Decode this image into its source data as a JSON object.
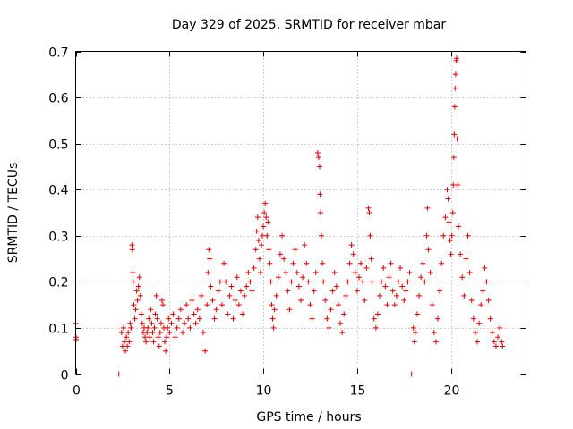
{
  "chart_data": {
    "type": "scatter",
    "title": "Day 329 of 2025, SRMTID for receiver mbar",
    "xlabel": "GPS time / hours",
    "ylabel": "SRMTID / TECUs",
    "xlim": [
      0,
      24
    ],
    "ylim": [
      0,
      0.7
    ],
    "xticks": [
      0,
      5,
      10,
      15,
      20
    ],
    "yticks": [
      0,
      0.1,
      0.2,
      0.3,
      0.4,
      0.5,
      0.6,
      0.7
    ],
    "xtick_labels": [
      "0",
      "5",
      "10",
      "15",
      "20"
    ],
    "ytick_labels": [
      "0",
      "0.1",
      "0.2",
      "0.3",
      "0.4",
      "0.5",
      "0.6",
      "0.7"
    ],
    "grid": true,
    "marker": "+",
    "color": "#e00000",
    "series": [
      {
        "name": "SRMTID",
        "points": [
          [
            0.0,
            0.11
          ],
          [
            0.02,
            0.08
          ],
          [
            0.03,
            0.075
          ],
          [
            2.3,
            0.0
          ],
          [
            17.9,
            0.0
          ],
          [
            2.45,
            0.09
          ],
          [
            2.5,
            0.06
          ],
          [
            2.55,
            0.1
          ],
          [
            2.6,
            0.07
          ],
          [
            2.65,
            0.05
          ],
          [
            2.7,
            0.08
          ],
          [
            2.75,
            0.06
          ],
          [
            2.8,
            0.09
          ],
          [
            2.85,
            0.07
          ],
          [
            2.9,
            0.11
          ],
          [
            2.95,
            0.1
          ],
          [
            3.0,
            0.28
          ],
          [
            3.02,
            0.27
          ],
          [
            3.05,
            0.22
          ],
          [
            3.07,
            0.2
          ],
          [
            3.1,
            0.15
          ],
          [
            3.15,
            0.12
          ],
          [
            3.2,
            0.14
          ],
          [
            3.25,
            0.18
          ],
          [
            3.3,
            0.16
          ],
          [
            3.35,
            0.19
          ],
          [
            3.4,
            0.21
          ],
          [
            3.45,
            0.17
          ],
          [
            3.5,
            0.13
          ],
          [
            3.55,
            0.11
          ],
          [
            3.6,
            0.09
          ],
          [
            3.65,
            0.1
          ],
          [
            3.7,
            0.08
          ],
          [
            3.75,
            0.07
          ],
          [
            3.8,
            0.09
          ],
          [
            3.85,
            0.1
          ],
          [
            3.9,
            0.12
          ],
          [
            3.95,
            0.08
          ],
          [
            4.0,
            0.14
          ],
          [
            4.05,
            0.11
          ],
          [
            4.1,
            0.09
          ],
          [
            4.15,
            0.07
          ],
          [
            4.2,
            0.1
          ],
          [
            4.25,
            0.13
          ],
          [
            4.3,
            0.17
          ],
          [
            4.35,
            0.12
          ],
          [
            4.4,
            0.08
          ],
          [
            4.45,
            0.06
          ],
          [
            4.5,
            0.09
          ],
          [
            4.55,
            0.11
          ],
          [
            4.6,
            0.16
          ],
          [
            4.65,
            0.15
          ],
          [
            4.7,
            0.1
          ],
          [
            4.75,
            0.07
          ],
          [
            4.8,
            0.05
          ],
          [
            4.85,
            0.08
          ],
          [
            4.9,
            0.1
          ],
          [
            4.95,
            0.12
          ],
          [
            5.0,
            0.09
          ],
          [
            5.1,
            0.11
          ],
          [
            5.2,
            0.13
          ],
          [
            5.3,
            0.08
          ],
          [
            5.4,
            0.1
          ],
          [
            5.5,
            0.12
          ],
          [
            5.6,
            0.14
          ],
          [
            5.7,
            0.09
          ],
          [
            5.8,
            0.11
          ],
          [
            5.9,
            0.15
          ],
          [
            6.0,
            0.12
          ],
          [
            6.1,
            0.1
          ],
          [
            6.2,
            0.16
          ],
          [
            6.3,
            0.13
          ],
          [
            6.4,
            0.11
          ],
          [
            6.5,
            0.14
          ],
          [
            6.6,
            0.12
          ],
          [
            6.7,
            0.17
          ],
          [
            6.8,
            0.09
          ],
          [
            6.9,
            0.05
          ],
          [
            7.0,
            0.15
          ],
          [
            7.05,
            0.22
          ],
          [
            7.1,
            0.27
          ],
          [
            7.15,
            0.25
          ],
          [
            7.2,
            0.19
          ],
          [
            7.3,
            0.16
          ],
          [
            7.4,
            0.12
          ],
          [
            7.5,
            0.14
          ],
          [
            7.6,
            0.18
          ],
          [
            7.7,
            0.2
          ],
          [
            7.8,
            0.15
          ],
          [
            7.9,
            0.24
          ],
          [
            8.0,
            0.2
          ],
          [
            8.1,
            0.13
          ],
          [
            8.2,
            0.17
          ],
          [
            8.3,
            0.19
          ],
          [
            8.4,
            0.12
          ],
          [
            8.5,
            0.16
          ],
          [
            8.6,
            0.21
          ],
          [
            8.7,
            0.15
          ],
          [
            8.8,
            0.18
          ],
          [
            8.9,
            0.13
          ],
          [
            9.0,
            0.17
          ],
          [
            9.1,
            0.19
          ],
          [
            9.2,
            0.22
          ],
          [
            9.3,
            0.2
          ],
          [
            9.4,
            0.18
          ],
          [
            9.5,
            0.23
          ],
          [
            9.6,
            0.27
          ],
          [
            9.65,
            0.31
          ],
          [
            9.7,
            0.34
          ],
          [
            9.75,
            0.29
          ],
          [
            9.8,
            0.25
          ],
          [
            9.85,
            0.22
          ],
          [
            9.9,
            0.28
          ],
          [
            9.95,
            0.3
          ],
          [
            10.0,
            0.32
          ],
          [
            10.05,
            0.35
          ],
          [
            10.1,
            0.37
          ],
          [
            10.15,
            0.34
          ],
          [
            10.2,
            0.3
          ],
          [
            10.25,
            0.33
          ],
          [
            10.3,
            0.27
          ],
          [
            10.35,
            0.24
          ],
          [
            10.4,
            0.2
          ],
          [
            10.45,
            0.15
          ],
          [
            10.5,
            0.12
          ],
          [
            10.55,
            0.1
          ],
          [
            10.6,
            0.14
          ],
          [
            10.7,
            0.17
          ],
          [
            10.8,
            0.21
          ],
          [
            10.9,
            0.26
          ],
          [
            11.0,
            0.3
          ],
          [
            11.1,
            0.25
          ],
          [
            11.2,
            0.22
          ],
          [
            11.3,
            0.18
          ],
          [
            11.4,
            0.14
          ],
          [
            11.5,
            0.2
          ],
          [
            11.6,
            0.24
          ],
          [
            11.7,
            0.27
          ],
          [
            11.8,
            0.22
          ],
          [
            11.9,
            0.19
          ],
          [
            12.0,
            0.16
          ],
          [
            12.1,
            0.21
          ],
          [
            12.2,
            0.28
          ],
          [
            12.3,
            0.24
          ],
          [
            12.4,
            0.2
          ],
          [
            12.5,
            0.15
          ],
          [
            12.6,
            0.12
          ],
          [
            12.7,
            0.18
          ],
          [
            12.8,
            0.22
          ],
          [
            12.9,
            0.48
          ],
          [
            12.95,
            0.47
          ],
          [
            13.0,
            0.45
          ],
          [
            13.02,
            0.39
          ],
          [
            13.05,
            0.35
          ],
          [
            13.1,
            0.3
          ],
          [
            13.15,
            0.24
          ],
          [
            13.2,
            0.2
          ],
          [
            13.3,
            0.16
          ],
          [
            13.4,
            0.12
          ],
          [
            13.5,
            0.1
          ],
          [
            13.6,
            0.14
          ],
          [
            13.7,
            0.18
          ],
          [
            13.8,
            0.22
          ],
          [
            13.9,
            0.19
          ],
          [
            14.0,
            0.15
          ],
          [
            14.1,
            0.11
          ],
          [
            14.2,
            0.09
          ],
          [
            14.3,
            0.13
          ],
          [
            14.4,
            0.17
          ],
          [
            14.5,
            0.2
          ],
          [
            14.6,
            0.24
          ],
          [
            14.7,
            0.28
          ],
          [
            14.8,
            0.26
          ],
          [
            14.9,
            0.22
          ],
          [
            15.0,
            0.18
          ],
          [
            15.1,
            0.21
          ],
          [
            15.2,
            0.24
          ],
          [
            15.3,
            0.2
          ],
          [
            15.4,
            0.16
          ],
          [
            15.5,
            0.23
          ],
          [
            15.6,
            0.36
          ],
          [
            15.65,
            0.35
          ],
          [
            15.7,
            0.3
          ],
          [
            15.75,
            0.25
          ],
          [
            15.8,
            0.2
          ],
          [
            15.9,
            0.12
          ],
          [
            16.0,
            0.1
          ],
          [
            16.1,
            0.13
          ],
          [
            16.2,
            0.17
          ],
          [
            16.3,
            0.2
          ],
          [
            16.4,
            0.23
          ],
          [
            16.5,
            0.19
          ],
          [
            16.6,
            0.15
          ],
          [
            16.7,
            0.21
          ],
          [
            16.8,
            0.24
          ],
          [
            16.9,
            0.18
          ],
          [
            17.0,
            0.15
          ],
          [
            17.1,
            0.17
          ],
          [
            17.2,
            0.2
          ],
          [
            17.3,
            0.23
          ],
          [
            17.4,
            0.19
          ],
          [
            17.5,
            0.16
          ],
          [
            17.6,
            0.18
          ],
          [
            17.7,
            0.2
          ],
          [
            17.8,
            0.22
          ],
          [
            18.0,
            0.1
          ],
          [
            18.05,
            0.07
          ],
          [
            18.1,
            0.09
          ],
          [
            18.2,
            0.13
          ],
          [
            18.3,
            0.17
          ],
          [
            18.4,
            0.21
          ],
          [
            18.5,
            0.24
          ],
          [
            18.6,
            0.2
          ],
          [
            18.7,
            0.3
          ],
          [
            18.75,
            0.36
          ],
          [
            18.8,
            0.27
          ],
          [
            18.9,
            0.22
          ],
          [
            19.0,
            0.15
          ],
          [
            19.1,
            0.09
          ],
          [
            19.2,
            0.07
          ],
          [
            19.3,
            0.12
          ],
          [
            19.4,
            0.18
          ],
          [
            19.5,
            0.24
          ],
          [
            19.6,
            0.3
          ],
          [
            19.7,
            0.34
          ],
          [
            19.8,
            0.4
          ],
          [
            19.85,
            0.38
          ],
          [
            19.9,
            0.33
          ],
          [
            19.95,
            0.29
          ],
          [
            20.0,
            0.26
          ],
          [
            20.05,
            0.3
          ],
          [
            20.1,
            0.35
          ],
          [
            20.12,
            0.41
          ],
          [
            20.15,
            0.47
          ],
          [
            20.18,
            0.52
          ],
          [
            20.2,
            0.58
          ],
          [
            20.22,
            0.62
          ],
          [
            20.25,
            0.65
          ],
          [
            20.28,
            0.68
          ],
          [
            20.3,
            0.685
          ],
          [
            20.33,
            0.51
          ],
          [
            20.36,
            0.41
          ],
          [
            20.4,
            0.32
          ],
          [
            20.5,
            0.26
          ],
          [
            20.6,
            0.21
          ],
          [
            20.7,
            0.17
          ],
          [
            20.8,
            0.25
          ],
          [
            20.9,
            0.3
          ],
          [
            21.0,
            0.22
          ],
          [
            21.1,
            0.16
          ],
          [
            21.2,
            0.12
          ],
          [
            21.3,
            0.09
          ],
          [
            21.4,
            0.07
          ],
          [
            21.5,
            0.11
          ],
          [
            21.6,
            0.15
          ],
          [
            21.7,
            0.18
          ],
          [
            21.8,
            0.23
          ],
          [
            21.9,
            0.2
          ],
          [
            22.0,
            0.16
          ],
          [
            22.1,
            0.12
          ],
          [
            22.2,
            0.09
          ],
          [
            22.3,
            0.07
          ],
          [
            22.4,
            0.06
          ],
          [
            22.5,
            0.08
          ],
          [
            22.6,
            0.1
          ],
          [
            22.7,
            0.07
          ],
          [
            22.75,
            0.06
          ]
        ]
      }
    ]
  }
}
